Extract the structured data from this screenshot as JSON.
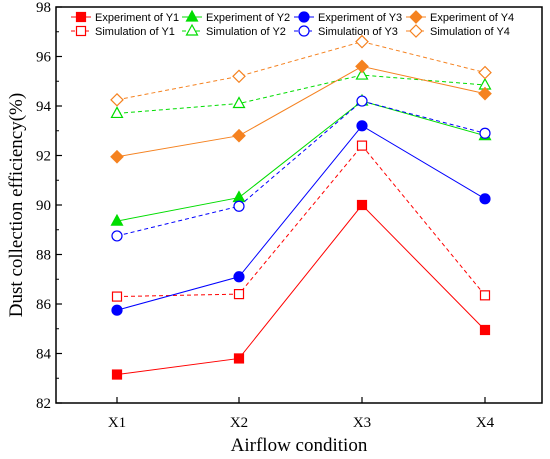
{
  "chart_data": {
    "type": "line",
    "xlabel": "Airflow condition",
    "ylabel": "Dust collection efficiency(%)",
    "categories": [
      "X1",
      "X2",
      "X3",
      "X4"
    ],
    "ylim": [
      82,
      98
    ],
    "yticks": [
      82,
      84,
      86,
      88,
      90,
      92,
      94,
      96,
      98
    ],
    "grid": false,
    "legend_position": "top",
    "series": [
      {
        "name": "Experiment of Y1",
        "values": [
          83.15,
          83.8,
          90.0,
          84.95
        ],
        "color": "#ff0000",
        "marker": "square",
        "filled": true,
        "dashed": false
      },
      {
        "name": "Simulation of  Y1",
        "values": [
          86.3,
          86.4,
          92.4,
          86.35
        ],
        "color": "#ff0000",
        "marker": "square",
        "filled": false,
        "dashed": true
      },
      {
        "name": "Experiment of Y2",
        "values": [
          89.35,
          90.3,
          94.2,
          92.8
        ],
        "color": "#00dd00",
        "marker": "triangle",
        "filled": true,
        "dashed": false
      },
      {
        "name": "Simulation of  Y2",
        "values": [
          93.7,
          94.1,
          95.25,
          94.85
        ],
        "color": "#00dd00",
        "marker": "triangle",
        "filled": false,
        "dashed": true
      },
      {
        "name": "Experiment of Y3",
        "values": [
          85.75,
          87.1,
          93.2,
          90.25
        ],
        "color": "#0000ff",
        "marker": "circle",
        "filled": true,
        "dashed": false
      },
      {
        "name": "Simulation of  Y3",
        "values": [
          88.75,
          89.95,
          94.2,
          92.9
        ],
        "color": "#0000ff",
        "marker": "circle",
        "filled": false,
        "dashed": true
      },
      {
        "name": "Experiment of Y4",
        "values": [
          91.95,
          92.8,
          95.6,
          94.5
        ],
        "color": "#f58220",
        "marker": "diamond",
        "filled": true,
        "dashed": false
      },
      {
        "name": "Simulation of  Y4",
        "values": [
          94.25,
          95.2,
          96.6,
          95.35
        ],
        "color": "#f58220",
        "marker": "diamond",
        "filled": false,
        "dashed": true
      }
    ]
  }
}
